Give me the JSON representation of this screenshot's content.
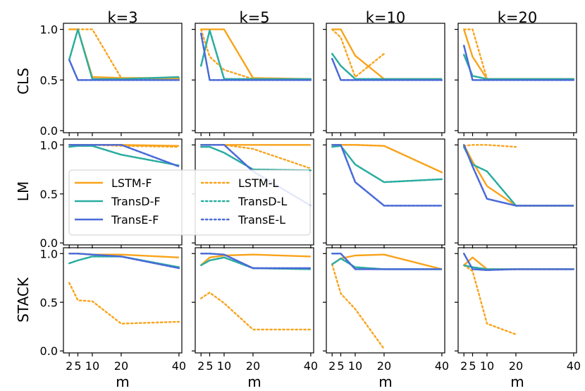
{
  "chart_data": {
    "type": "line",
    "title": "",
    "columns": [
      "k=3",
      "k=5",
      "k=10",
      "k=20"
    ],
    "rows": [
      "CLS",
      "LM",
      "STACK"
    ],
    "xlabel": "m",
    "x": [
      2,
      5,
      10,
      20,
      40
    ],
    "xticks": [
      2,
      5,
      10,
      20,
      40
    ],
    "xlim": [
      0,
      41
    ],
    "ylim": [
      -0.02,
      1.06
    ],
    "yticks": [
      0.0,
      0.5,
      1.0
    ],
    "ytick_labels": [
      "0.0",
      "0.5",
      "1.0"
    ],
    "xtick_labels": [
      "2",
      "5",
      "10",
      "20",
      "40"
    ],
    "legend": {
      "placement": "inside LM / k=3 panel, center",
      "entries": [
        {
          "name": "LSTM-F",
          "style": "solid",
          "color": "#f9a31b"
        },
        {
          "name": "TransD-F",
          "style": "solid",
          "color": "#2bada0"
        },
        {
          "name": "TransE-F",
          "style": "solid",
          "color": "#4a6ad8"
        },
        {
          "name": "LSTM-L",
          "style": "dotted",
          "color": "#f9a31b"
        },
        {
          "name": "TransD-L",
          "style": "dotted",
          "color": "#2bada0"
        },
        {
          "name": "TransE-L",
          "style": "dotted",
          "color": "#4a6ad8"
        }
      ]
    },
    "colors": {
      "LSTM": "#f9a31b",
      "TransD": "#2bada0",
      "TransE": "#4a6ad8"
    },
    "panels": [
      {
        "row": "CLS",
        "col": "k=3",
        "series": [
          {
            "name": "LSTM-F",
            "values": [
              1.0,
              1.0,
              0.53,
              0.52,
              0.52
            ]
          },
          {
            "name": "TransD-F",
            "values": [
              0.7,
              1.0,
              0.51,
              0.51,
              0.53
            ]
          },
          {
            "name": "TransE-F",
            "values": [
              0.7,
              0.5,
              0.5,
              0.5,
              0.5
            ]
          },
          {
            "name": "LSTM-L",
            "values": [
              1.0,
              1.0,
              1.0,
              0.52,
              0.51
            ]
          },
          {
            "name": "TransD-L",
            "values": [
              0.7,
              1.0,
              0.51,
              0.51,
              0.52
            ]
          },
          {
            "name": "TransE-L",
            "values": [
              0.7,
              0.5,
              0.5,
              0.5,
              0.5
            ]
          }
        ]
      },
      {
        "row": "CLS",
        "col": "k=5",
        "series": [
          {
            "name": "LSTM-F",
            "values": [
              1.0,
              1.0,
              1.0,
              0.52,
              0.51
            ]
          },
          {
            "name": "TransD-F",
            "values": [
              0.64,
              0.99,
              0.51,
              0.51,
              0.51
            ]
          },
          {
            "name": "TransE-F",
            "values": [
              0.96,
              0.5,
              0.5,
              0.5,
              0.5
            ]
          },
          {
            "name": "LSTM-L",
            "values": [
              1.0,
              0.73,
              0.6,
              0.51,
              0.5
            ]
          },
          {
            "name": "TransD-L",
            "values": [
              0.64,
              0.99,
              0.51,
              0.51,
              0.51
            ]
          },
          {
            "name": "TransE-L",
            "values": [
              0.96,
              0.5,
              0.5,
              0.5,
              0.5
            ]
          }
        ]
      },
      {
        "row": "CLS",
        "col": "k=10",
        "series": [
          {
            "name": "LSTM-F",
            "values": [
              1.0,
              1.0,
              0.74,
              0.51,
              0.51
            ]
          },
          {
            "name": "TransD-F",
            "values": [
              0.76,
              0.64,
              0.51,
              0.51,
              0.51
            ]
          },
          {
            "name": "TransE-F",
            "values": [
              0.71,
              0.5,
              0.5,
              0.5,
              0.5
            ]
          },
          {
            "name": "LSTM-L",
            "values": [
              1.0,
              0.92,
              0.53,
              0.76,
              null
            ]
          },
          {
            "name": "TransD-L",
            "values": [
              0.76,
              0.64,
              0.51,
              0.51,
              0.51
            ]
          },
          {
            "name": "TransE-L",
            "values": [
              0.71,
              0.5,
              0.5,
              0.5,
              0.5
            ]
          }
        ]
      },
      {
        "row": "CLS",
        "col": "k=20",
        "series": [
          {
            "name": "LSTM-F",
            "values": [
              1.0,
              0.73,
              0.51,
              0.51,
              0.51
            ]
          },
          {
            "name": "TransD-F",
            "values": [
              0.75,
              0.54,
              0.51,
              0.51,
              0.51
            ]
          },
          {
            "name": "TransE-F",
            "values": [
              0.84,
              0.5,
              0.5,
              0.5,
              0.5
            ]
          },
          {
            "name": "LSTM-L",
            "values": [
              1.0,
              1.0,
              0.51,
              0.51,
              0.51
            ]
          },
          {
            "name": "TransD-L",
            "values": [
              0.75,
              0.54,
              0.51,
              0.51,
              0.51
            ]
          },
          {
            "name": "TransE-L",
            "values": [
              0.84,
              0.5,
              0.5,
              0.5,
              0.5
            ]
          }
        ]
      },
      {
        "row": "LM",
        "col": "k=3",
        "series": [
          {
            "name": "LSTM-F",
            "values": [
              1.0,
              1.0,
              1.0,
              1.0,
              0.99
            ]
          },
          {
            "name": "TransD-F",
            "values": [
              0.98,
              0.99,
              0.99,
              0.9,
              0.79
            ]
          },
          {
            "name": "TransE-F",
            "values": [
              1.0,
              1.0,
              1.0,
              1.0,
              0.78
            ]
          },
          {
            "name": "LSTM-L",
            "values": [
              1.0,
              1.0,
              1.0,
              0.99,
              0.98
            ]
          },
          {
            "name": "TransD-L",
            "values": [
              0.98,
              0.99,
              0.99,
              0.9,
              0.79
            ]
          },
          {
            "name": "TransE-L",
            "values": [
              1.0,
              1.0,
              1.0,
              1.0,
              0.78
            ]
          }
        ]
      },
      {
        "row": "LM",
        "col": "k=5",
        "series": [
          {
            "name": "LSTM-F",
            "values": [
              1.0,
              1.0,
              1.0,
              1.0,
              1.0
            ]
          },
          {
            "name": "TransD-F",
            "values": [
              0.98,
              0.98,
              0.92,
              0.75,
              0.74
            ]
          },
          {
            "name": "TransE-F",
            "values": [
              1.0,
              1.0,
              1.0,
              0.73,
              0.38
            ]
          },
          {
            "name": "LSTM-L",
            "values": [
              1.0,
              1.0,
              1.0,
              0.96,
              0.76
            ]
          },
          {
            "name": "TransD-L",
            "values": [
              0.98,
              0.98,
              0.92,
              0.75,
              0.74
            ]
          },
          {
            "name": "TransE-L",
            "values": [
              1.0,
              1.0,
              1.0,
              0.73,
              0.38
            ]
          }
        ]
      },
      {
        "row": "LM",
        "col": "k=10",
        "series": [
          {
            "name": "LSTM-F",
            "values": [
              1.0,
              1.0,
              1.0,
              0.99,
              0.72
            ]
          },
          {
            "name": "TransD-F",
            "values": [
              0.98,
              0.99,
              0.8,
              0.62,
              0.65
            ]
          },
          {
            "name": "TransE-F",
            "values": [
              1.0,
              1.0,
              0.62,
              0.38,
              0.38
            ]
          },
          {
            "name": "LSTM-L",
            "values": [
              1.0,
              1.0,
              1.0,
              0.99,
              0.72
            ]
          },
          {
            "name": "TransD-L",
            "values": [
              0.98,
              0.99,
              0.8,
              0.62,
              0.65
            ]
          },
          {
            "name": "TransE-L",
            "values": [
              1.0,
              1.0,
              0.62,
              0.38,
              0.38
            ]
          }
        ]
      },
      {
        "row": "LM",
        "col": "k=20",
        "series": [
          {
            "name": "LSTM-F",
            "values": [
              1.0,
              0.83,
              0.58,
              0.38,
              0.38
            ]
          },
          {
            "name": "TransD-F",
            "values": [
              0.98,
              0.8,
              0.73,
              0.38,
              0.38
            ]
          },
          {
            "name": "TransE-F",
            "values": [
              1.0,
              0.78,
              0.45,
              0.38,
              0.38
            ]
          },
          {
            "name": "LSTM-L",
            "values": [
              0.99,
              1.0,
              1.0,
              0.98,
              null
            ]
          },
          {
            "name": "TransD-L",
            "values": [
              0.98,
              0.8,
              0.73,
              0.38,
              0.38
            ]
          },
          {
            "name": "TransE-L",
            "values": [
              1.0,
              0.78,
              0.45,
              0.38,
              0.38
            ]
          }
        ]
      },
      {
        "row": "STACK",
        "col": "k=3",
        "series": [
          {
            "name": "LSTM-F",
            "values": [
              1.0,
              1.0,
              0.99,
              0.99,
              0.96
            ]
          },
          {
            "name": "TransD-F",
            "values": [
              0.9,
              0.93,
              0.97,
              0.97,
              0.86
            ]
          },
          {
            "name": "TransE-F",
            "values": [
              1.0,
              1.0,
              0.99,
              0.97,
              0.85
            ]
          },
          {
            "name": "LSTM-L",
            "values": [
              0.7,
              0.52,
              0.51,
              0.28,
              0.3
            ]
          },
          {
            "name": "TransD-L",
            "values": [
              0.9,
              0.93,
              0.97,
              0.97,
              0.86
            ]
          },
          {
            "name": "TransE-L",
            "values": [
              1.0,
              1.0,
              0.99,
              0.97,
              0.85
            ]
          }
        ]
      },
      {
        "row": "STACK",
        "col": "k=5",
        "series": [
          {
            "name": "LSTM-F",
            "values": [
              0.88,
              0.96,
              0.98,
              0.99,
              0.97
            ]
          },
          {
            "name": "TransD-F",
            "values": [
              0.88,
              0.93,
              0.96,
              0.85,
              0.84
            ]
          },
          {
            "name": "TransE-F",
            "values": [
              1.0,
              1.0,
              0.99,
              0.85,
              0.85
            ]
          },
          {
            "name": "LSTM-L",
            "values": [
              0.54,
              0.6,
              0.49,
              0.22,
              0.22
            ]
          },
          {
            "name": "TransD-L",
            "values": [
              0.88,
              0.93,
              0.96,
              0.85,
              0.84
            ]
          },
          {
            "name": "TransE-L",
            "values": [
              1.0,
              1.0,
              0.99,
              0.85,
              0.85
            ]
          }
        ]
      },
      {
        "row": "STACK",
        "col": "k=10",
        "series": [
          {
            "name": "LSTM-F",
            "values": [
              0.89,
              0.95,
              0.98,
              0.99,
              0.84
            ]
          },
          {
            "name": "TransD-F",
            "values": [
              0.89,
              0.95,
              0.86,
              0.84,
              0.84
            ]
          },
          {
            "name": "TransE-F",
            "values": [
              1.0,
              1.0,
              0.84,
              0.84,
              0.84
            ]
          },
          {
            "name": "LSTM-L",
            "values": [
              0.89,
              0.59,
              0.43,
              0.02,
              null
            ]
          },
          {
            "name": "TransD-L",
            "values": [
              0.89,
              0.95,
              0.86,
              0.84,
              0.84
            ]
          },
          {
            "name": "TransE-L",
            "values": [
              1.0,
              1.0,
              0.84,
              0.84,
              0.84
            ]
          }
        ]
      },
      {
        "row": "STACK",
        "col": "k=20",
        "series": [
          {
            "name": "LSTM-F",
            "values": [
              0.88,
              0.96,
              0.84,
              0.84,
              0.84
            ]
          },
          {
            "name": "TransD-F",
            "values": [
              0.88,
              0.86,
              0.84,
              0.84,
              0.84
            ]
          },
          {
            "name": "TransE-F",
            "values": [
              1.0,
              0.84,
              0.83,
              0.84,
              0.84
            ]
          },
          {
            "name": "LSTM-L",
            "values": [
              0.88,
              0.82,
              0.28,
              0.17,
              null
            ]
          },
          {
            "name": "TransD-L",
            "values": [
              0.88,
              0.86,
              0.84,
              0.84,
              0.84
            ]
          },
          {
            "name": "TransE-L",
            "values": [
              1.0,
              0.84,
              0.83,
              0.84,
              0.84
            ]
          }
        ]
      }
    ]
  }
}
